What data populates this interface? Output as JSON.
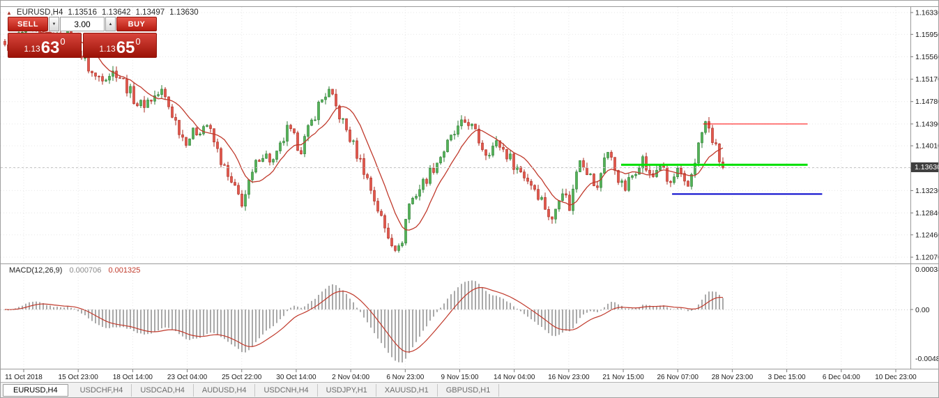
{
  "header": {
    "symbol_info": "EURUSD,H4",
    "open": "1.13516",
    "high": "1.13642",
    "low": "1.13497",
    "close": "1.13630"
  },
  "icons": {
    "price_direction": "▲",
    "spinner_up": "▲",
    "spinner_down": "▼"
  },
  "trade_panel": {
    "sell_label": "SELL",
    "buy_label": "BUY",
    "volume": "3.00",
    "bid": {
      "prefix": "1.13",
      "big": "63",
      "sup": "0"
    },
    "ask": {
      "prefix": "1.13",
      "big": "65",
      "sup": "0"
    }
  },
  "price_axis": {
    "current": "1.13630"
  },
  "macd_panel": {
    "title": "MACD(12,26,9)",
    "value_main": "0.000706",
    "value_signal": "0.001325"
  },
  "tabs": {
    "active": "EURUSD,H4",
    "items": [
      "USDCHF,H4",
      "USDCAD,H4",
      "AUDUSD,H4",
      "USDCNH,H4",
      "USDJPY,H1",
      "XAUUSD,H1",
      "GBPUSD,H1"
    ]
  },
  "chart_data": {
    "type": "candlestick",
    "symbol": "EURUSD",
    "timeframe": "H4",
    "last_bar": {
      "open": 1.13516,
      "high": 1.13642,
      "low": 1.13497,
      "close": 1.1363
    },
    "current_price": 1.1363,
    "y_ticks": [
      "1.16330",
      "1.15950",
      "1.15560",
      "1.15170",
      "1.14780",
      "1.14390",
      "1.14010",
      "1.13620",
      "1.13230",
      "1.12840",
      "1.12460",
      "1.12070"
    ],
    "x_ticks": [
      "11 Oct 2018",
      "15 Oct 23:00",
      "18 Oct 14:00",
      "23 Oct 04:00",
      "25 Oct 22:00",
      "30 Oct 14:00",
      "2 Nov 04:00",
      "6 Nov 23:00",
      "9 Nov 15:00",
      "14 Nov 04:00",
      "16 Nov 23:00",
      "21 Nov 15:00",
      "26 Nov 07:00",
      "28 Nov 23:00",
      "3 Dec 15:00",
      "6 Dec 04:00",
      "10 Dec 23:00"
    ],
    "candle_count": 207,
    "noise_amp": 0.0011,
    "ma_period": 10,
    "price_path": [
      [
        0.0,
        1.157
      ],
      [
        0.031,
        1.1605
      ],
      [
        0.062,
        1.158
      ],
      [
        0.085,
        1.16
      ],
      [
        0.125,
        1.152
      ],
      [
        0.156,
        1.153
      ],
      [
        0.187,
        1.147
      ],
      [
        0.219,
        1.1495
      ],
      [
        0.25,
        1.141
      ],
      [
        0.281,
        1.144
      ],
      [
        0.312,
        1.134
      ],
      [
        0.331,
        1.1302
      ],
      [
        0.356,
        1.139
      ],
      [
        0.375,
        1.1372
      ],
      [
        0.394,
        1.143
      ],
      [
        0.412,
        1.1395
      ],
      [
        0.437,
        1.1472
      ],
      [
        0.45,
        1.1498
      ],
      [
        0.475,
        1.143
      ],
      [
        0.5,
        1.136
      ],
      [
        0.531,
        1.125
      ],
      [
        0.55,
        1.1216
      ],
      [
        0.562,
        1.1298
      ],
      [
        0.594,
        1.1358
      ],
      [
        0.625,
        1.142
      ],
      [
        0.644,
        1.1447
      ],
      [
        0.669,
        1.139
      ],
      [
        0.687,
        1.1406
      ],
      [
        0.712,
        1.1365
      ],
      [
        0.737,
        1.133
      ],
      [
        0.75,
        1.1302
      ],
      [
        0.762,
        1.1268
      ],
      [
        0.775,
        1.1332
      ],
      [
        0.787,
        1.1292
      ],
      [
        0.8,
        1.1386
      ],
      [
        0.812,
        1.1356
      ],
      [
        0.825,
        1.1322
      ],
      [
        0.837,
        1.1398
      ],
      [
        0.85,
        1.136
      ],
      [
        0.862,
        1.1322
      ],
      [
        0.875,
        1.1352
      ],
      [
        0.887,
        1.1382
      ],
      [
        0.9,
        1.134
      ],
      [
        0.912,
        1.1372
      ],
      [
        0.925,
        1.133
      ],
      [
        0.937,
        1.1356
      ],
      [
        0.95,
        1.1322
      ],
      [
        0.962,
        1.1382
      ],
      [
        0.975,
        1.1443
      ],
      [
        0.987,
        1.1408
      ],
      [
        0.994,
        1.138
      ],
      [
        1.0,
        1.1363
      ]
    ],
    "hlines": [
      {
        "name": "resistance",
        "price": 1.1439,
        "color": "#ff0000",
        "width": 1,
        "x1": 0.772,
        "x2": 0.887
      },
      {
        "name": "breakout-level",
        "price": 1.1368,
        "color": "#00e000",
        "width": 3,
        "x1": 0.682,
        "x2": 0.887
      },
      {
        "name": "support",
        "price": 1.1317,
        "color": "#0000cc",
        "width": 2,
        "x1": 0.738,
        "x2": 0.903
      }
    ],
    "macd": {
      "fast": 12,
      "slow": 26,
      "signal": 9,
      "current_macd": 0.000706,
      "current_signal": 0.001325,
      "axis_labels": [
        "0.0003847",
        "0.00",
        "-0.004850"
      ]
    },
    "colors": {
      "up": "#53b257",
      "up_border": "#2a7b31",
      "down": "#e2574c",
      "down_border": "#a8281e",
      "ma": "#c0392b",
      "histogram": "#a9a9a9",
      "grid": "#e7e7e7"
    }
  }
}
